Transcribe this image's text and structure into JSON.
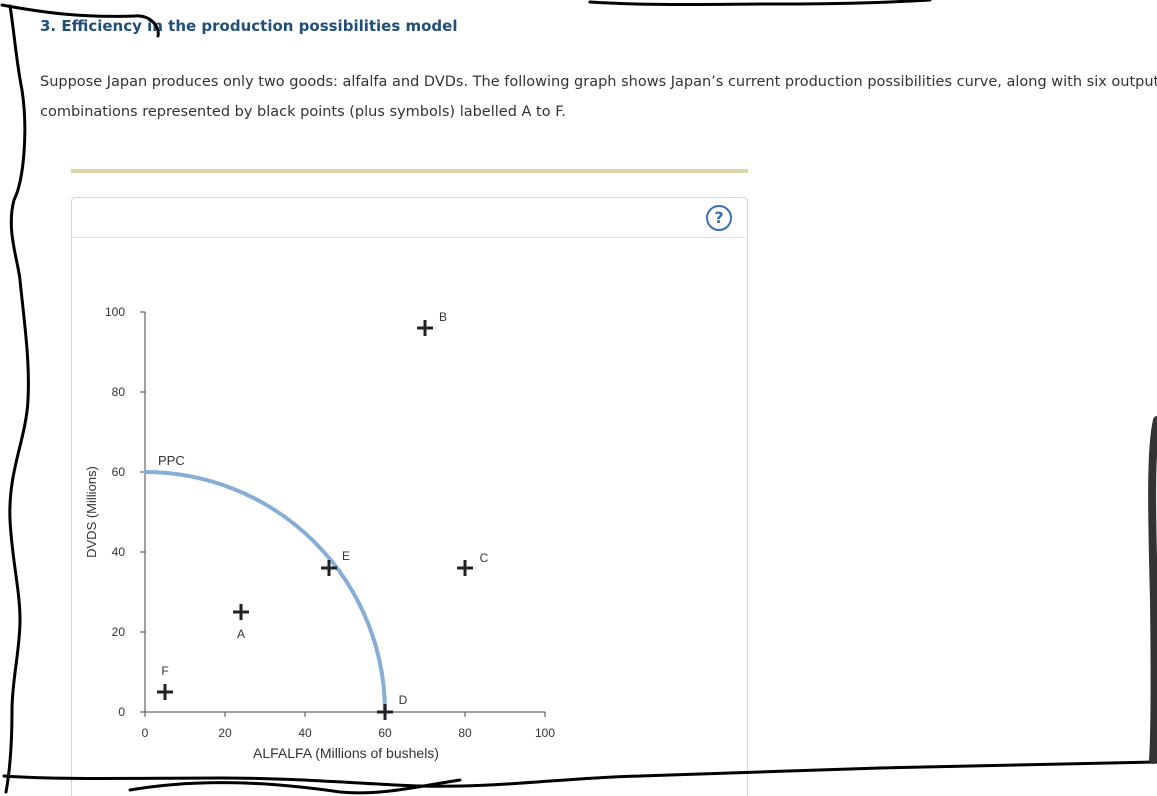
{
  "page": {
    "title": "3. Efficiency in the production possibilities model",
    "intro": "Suppose Japan produces only two goods: alfalfa and DVDs. The following graph shows Japan’s current production possibilities curve, along with six output combinations represented by black points (plus symbols) labelled A to F.",
    "help_icon_label": "?"
  },
  "colors": {
    "title": "#1f4e79",
    "curve": "#86aed6",
    "points": "#222222",
    "divider": "#ddd4a8",
    "help": "#3b6fb6"
  },
  "chart_data": {
    "type": "scatter",
    "xlabel": "ALFALFA (Millions of bushels)",
    "ylabel": "DVDS (Millions)",
    "xlim": [
      0,
      100
    ],
    "ylim": [
      0,
      100
    ],
    "xticks": [
      0,
      20,
      40,
      60,
      80,
      100
    ],
    "yticks": [
      0,
      20,
      40,
      60,
      80,
      100
    ],
    "grid": false,
    "curve": {
      "label": "PPC",
      "x_intercept": 60,
      "y_intercept": 60,
      "shape": "concave quarter-ellipse"
    },
    "points": [
      {
        "label": "A",
        "x": 24,
        "y": 25
      },
      {
        "label": "B",
        "x": 70,
        "y": 96
      },
      {
        "label": "C",
        "x": 80,
        "y": 36
      },
      {
        "label": "D",
        "x": 60,
        "y": 0
      },
      {
        "label": "E",
        "x": 46,
        "y": 36
      },
      {
        "label": "F",
        "x": 5,
        "y": 5
      }
    ]
  }
}
